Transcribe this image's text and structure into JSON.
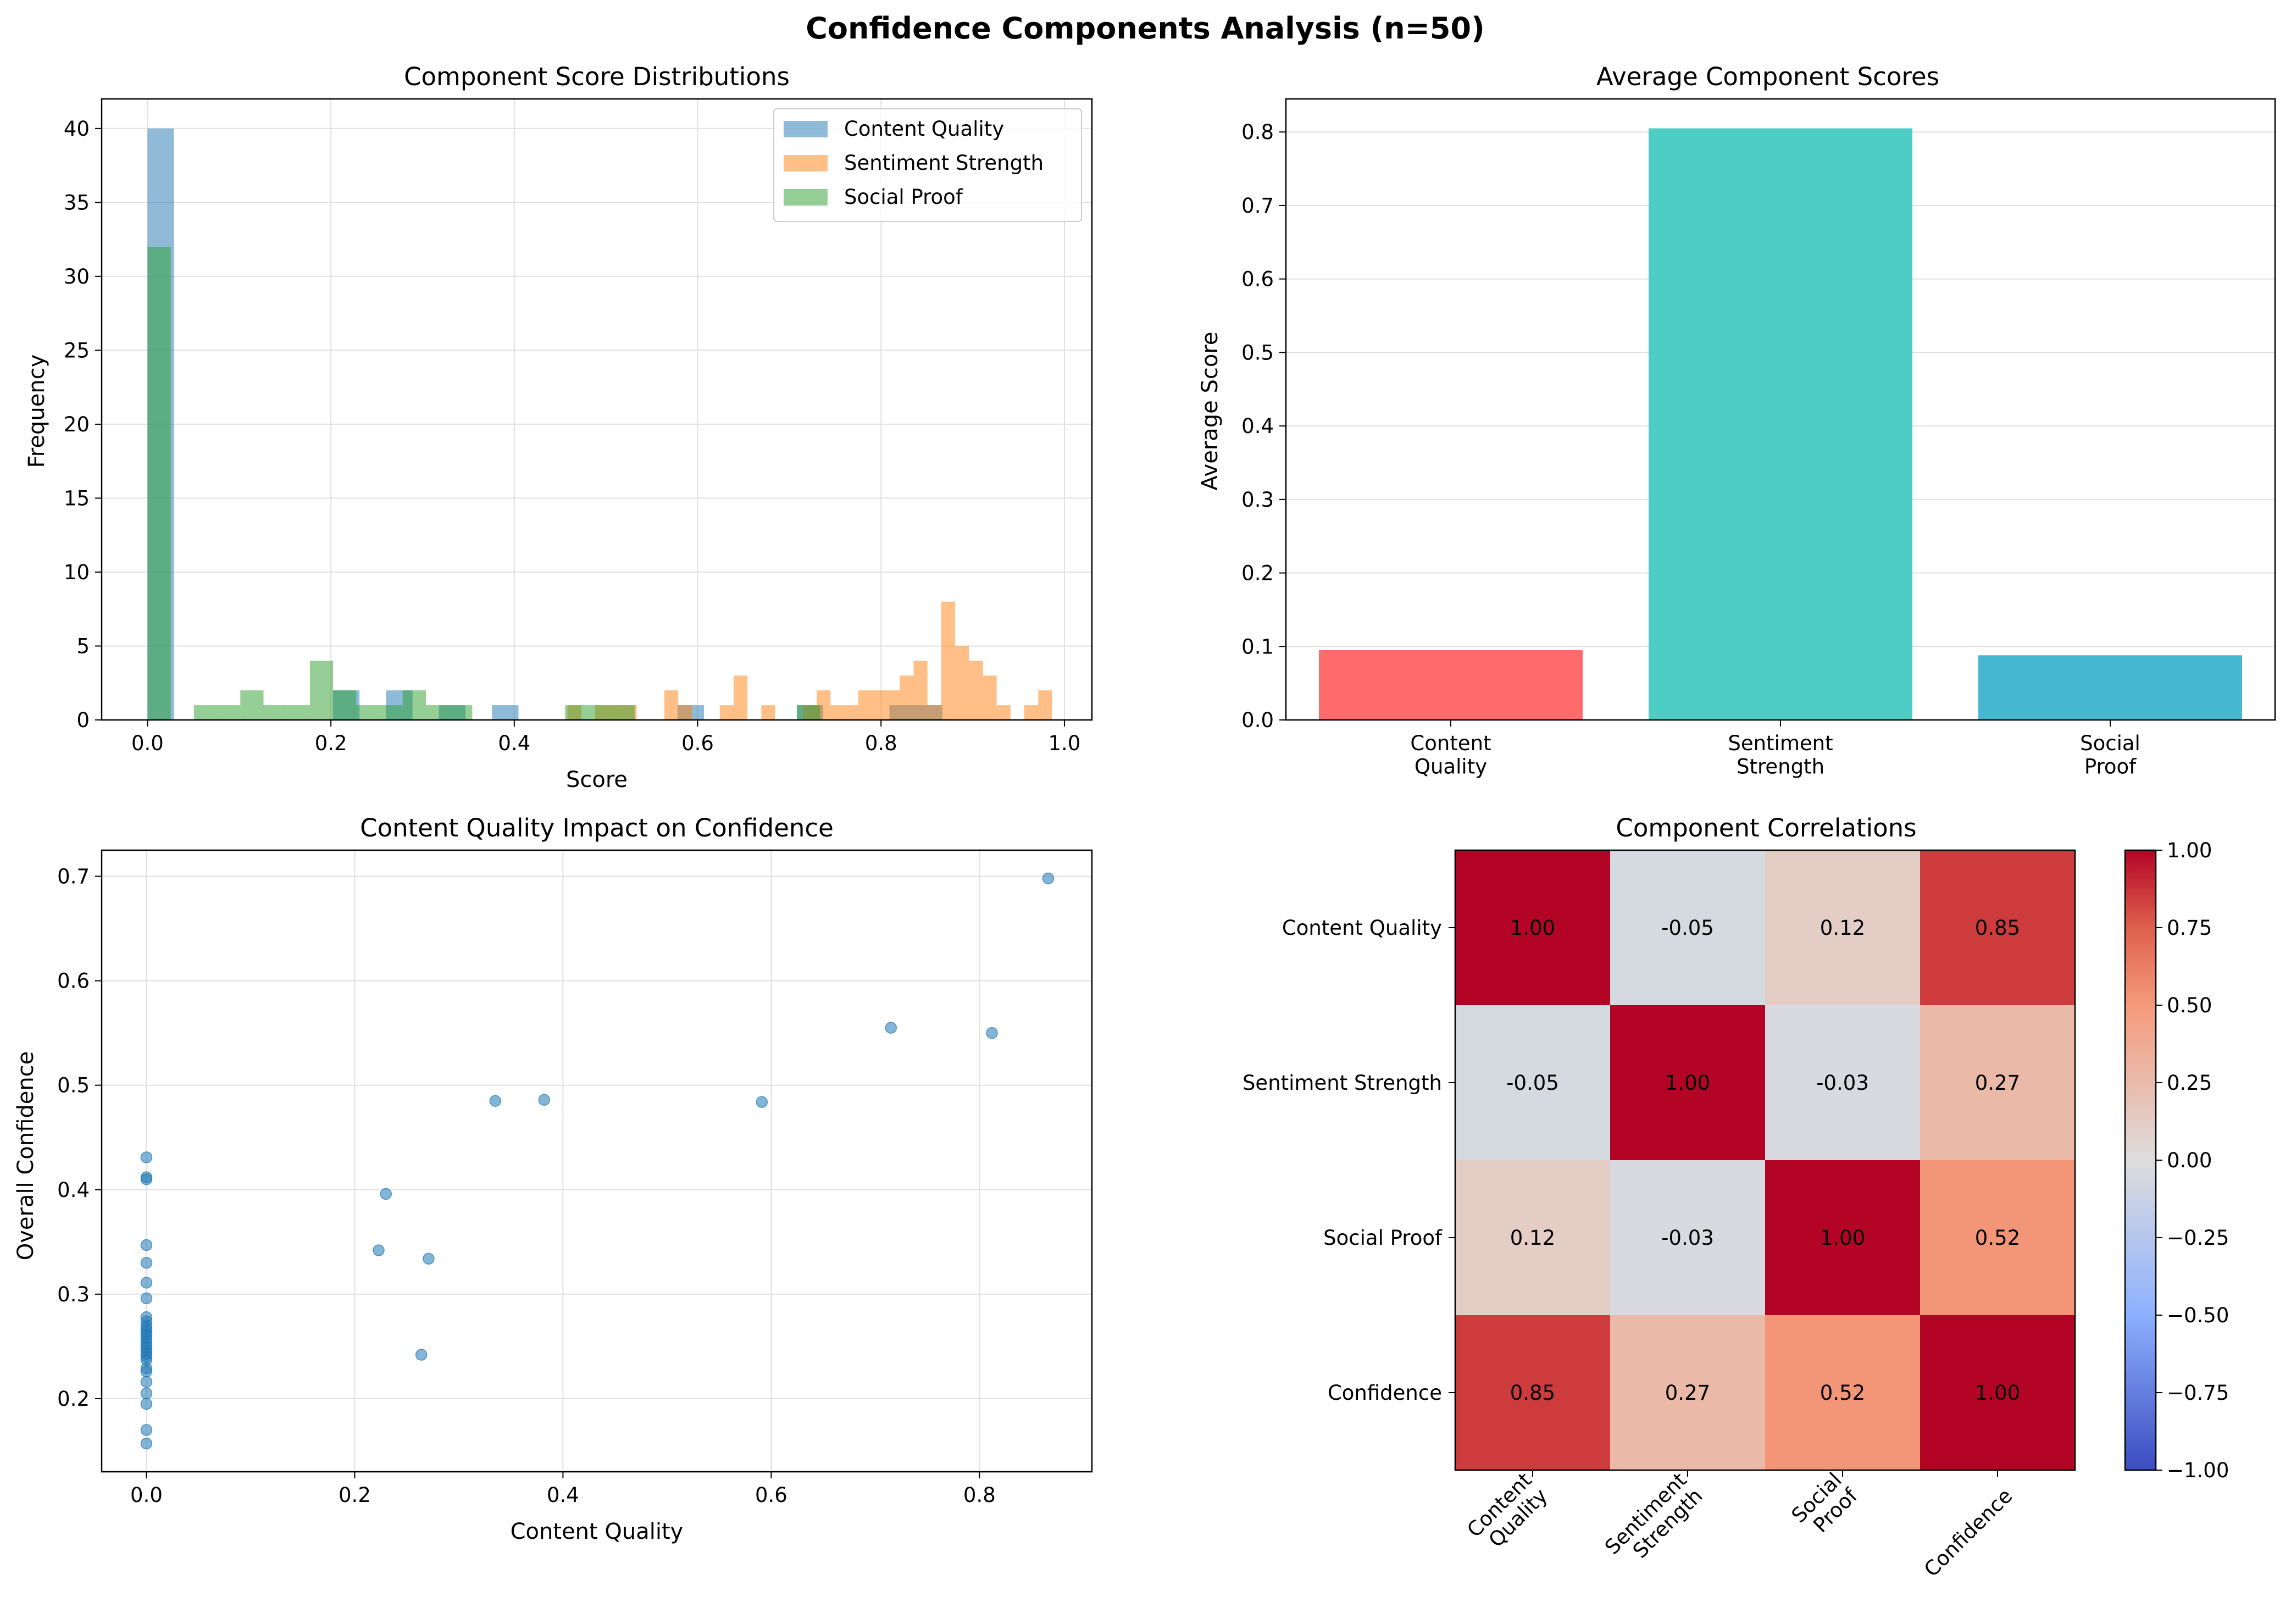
{
  "figure": {
    "title": "Confidence Components Analysis (n=50)"
  },
  "chart_data": [
    {
      "type": "bar",
      "subtype": "histogram",
      "title": "Component Score Distributions",
      "xlabel": "Score",
      "ylabel": "Frequency",
      "xlim": [
        -0.05,
        1.03
      ],
      "ylim": [
        0,
        42
      ],
      "xticks": [
        "0.0",
        "0.2",
        "0.4",
        "0.6",
        "0.8",
        "1.0"
      ],
      "yticks": [
        "0",
        "5",
        "10",
        "15",
        "20",
        "25",
        "30",
        "35",
        "40"
      ],
      "grid": true,
      "legend": "top-right",
      "series": [
        {
          "name": "Content Quality",
          "color": "#1f77b4",
          "bins": [
            {
              "x0": 0.0,
              "x1": 0.0289,
              "count": 40
            },
            {
              "x0": 0.2023,
              "x1": 0.2312,
              "count": 2
            },
            {
              "x0": 0.2601,
              "x1": 0.289,
              "count": 2
            },
            {
              "x0": 0.3179,
              "x1": 0.3468,
              "count": 1
            },
            {
              "x0": 0.3757,
              "x1": 0.4046,
              "count": 1
            },
            {
              "x0": 0.578,
              "x1": 0.6069,
              "count": 1
            },
            {
              "x0": 0.7081,
              "x1": 0.737,
              "count": 1
            },
            {
              "x0": 0.8092,
              "x1": 0.8381,
              "count": 1
            },
            {
              "x0": 0.8381,
              "x1": 0.867,
              "count": 1
            }
          ]
        },
        {
          "name": "Sentiment Strength",
          "color": "#ff7f0e",
          "bins": [
            {
              "x0": 0.458,
              "x1": 0.4731,
              "count": 1
            },
            {
              "x0": 0.4882,
              "x1": 0.5184,
              "count": 1
            },
            {
              "x0": 0.5184,
              "x1": 0.5335,
              "count": 1
            },
            {
              "x0": 0.5637,
              "x1": 0.5788,
              "count": 2
            },
            {
              "x0": 0.5788,
              "x1": 0.5939,
              "count": 1
            },
            {
              "x0": 0.6241,
              "x1": 0.6392,
              "count": 1
            },
            {
              "x0": 0.6392,
              "x1": 0.6543,
              "count": 3
            },
            {
              "x0": 0.6694,
              "x1": 0.6845,
              "count": 1
            },
            {
              "x0": 0.7147,
              "x1": 0.7298,
              "count": 1
            },
            {
              "x0": 0.7298,
              "x1": 0.7449,
              "count": 2
            },
            {
              "x0": 0.7449,
              "x1": 0.76,
              "count": 1
            },
            {
              "x0": 0.76,
              "x1": 0.7751,
              "count": 1
            },
            {
              "x0": 0.7751,
              "x1": 0.7902,
              "count": 2
            },
            {
              "x0": 0.7902,
              "x1": 0.8053,
              "count": 2
            },
            {
              "x0": 0.8053,
              "x1": 0.8204,
              "count": 2
            },
            {
              "x0": 0.8204,
              "x1": 0.8355,
              "count": 3
            },
            {
              "x0": 0.8355,
              "x1": 0.8506,
              "count": 4
            },
            {
              "x0": 0.8506,
              "x1": 0.8657,
              "count": 1
            },
            {
              "x0": 0.8657,
              "x1": 0.8808,
              "count": 8
            },
            {
              "x0": 0.8808,
              "x1": 0.8959,
              "count": 5
            },
            {
              "x0": 0.8959,
              "x1": 0.911,
              "count": 4
            },
            {
              "x0": 0.911,
              "x1": 0.9261,
              "count": 3
            },
            {
              "x0": 0.9261,
              "x1": 0.9412,
              "count": 1
            },
            {
              "x0": 0.9563,
              "x1": 0.9714,
              "count": 1
            },
            {
              "x0": 0.9714,
              "x1": 0.9865,
              "count": 2
            }
          ]
        },
        {
          "name": "Social Proof",
          "color": "#2ca02c",
          "bins": [
            {
              "x0": 0.0,
              "x1": 0.0253,
              "count": 32
            },
            {
              "x0": 0.0506,
              "x1": 0.0759,
              "count": 1
            },
            {
              "x0": 0.0759,
              "x1": 0.1012,
              "count": 1
            },
            {
              "x0": 0.1012,
              "x1": 0.1265,
              "count": 2
            },
            {
              "x0": 0.1265,
              "x1": 0.1518,
              "count": 1
            },
            {
              "x0": 0.1518,
              "x1": 0.1771,
              "count": 1
            },
            {
              "x0": 0.1771,
              "x1": 0.2024,
              "count": 4
            },
            {
              "x0": 0.2024,
              "x1": 0.2277,
              "count": 2
            },
            {
              "x0": 0.2277,
              "x1": 0.253,
              "count": 1
            },
            {
              "x0": 0.253,
              "x1": 0.2783,
              "count": 1
            },
            {
              "x0": 0.2783,
              "x1": 0.3036,
              "count": 2
            },
            {
              "x0": 0.3036,
              "x1": 0.3289,
              "count": 1
            },
            {
              "x0": 0.3289,
              "x1": 0.3542,
              "count": 1
            },
            {
              "x0": 0.4554,
              "x1": 0.4807,
              "count": 1
            },
            {
              "x0": 0.4807,
              "x1": 0.506,
              "count": 1
            },
            {
              "x0": 0.506,
              "x1": 0.5313,
              "count": 1
            },
            {
              "x0": 0.7084,
              "x1": 0.7337,
              "count": 1
            }
          ]
        }
      ]
    },
    {
      "type": "bar",
      "title": "Average Component Scores",
      "xlabel": "",
      "ylabel": "Average Score",
      "categories": [
        "Content\nQuality",
        "Sentiment\nStrength",
        "Social\nProof"
      ],
      "values": [
        0.095,
        0.805,
        0.088
      ],
      "colors": [
        "#ff6b6b",
        "#4ecdc4",
        "#45b7d1"
      ],
      "ylim": [
        0,
        0.845
      ],
      "yticks": [
        "0.0",
        "0.1",
        "0.2",
        "0.3",
        "0.4",
        "0.5",
        "0.6",
        "0.7",
        "0.8"
      ],
      "grid": true
    },
    {
      "type": "scatter",
      "title": "Content Quality Impact on Confidence",
      "xlabel": "Content Quality",
      "ylabel": "Overall Confidence",
      "color": "#1f77b4",
      "xlim": [
        -0.043,
        0.908
      ],
      "ylim": [
        0.13,
        0.725
      ],
      "xticks": [
        "0.0",
        "0.2",
        "0.4",
        "0.6",
        "0.8"
      ],
      "yticks": [
        "0.2",
        "0.3",
        "0.4",
        "0.5",
        "0.6",
        "0.7"
      ],
      "grid": true,
      "points": [
        [
          0,
          0.431
        ],
        [
          0,
          0.412
        ],
        [
          0,
          0.41
        ],
        [
          0,
          0.347
        ],
        [
          0,
          0.33
        ],
        [
          0,
          0.311
        ],
        [
          0,
          0.296
        ],
        [
          0,
          0.278
        ],
        [
          0,
          0.274
        ],
        [
          0,
          0.27
        ],
        [
          0,
          0.267
        ],
        [
          0,
          0.264
        ],
        [
          0,
          0.261
        ],
        [
          0,
          0.258
        ],
        [
          0,
          0.255
        ],
        [
          0,
          0.252
        ],
        [
          0,
          0.249
        ],
        [
          0,
          0.246
        ],
        [
          0,
          0.243
        ],
        [
          0,
          0.24
        ],
        [
          0,
          0.237
        ],
        [
          0,
          0.229
        ],
        [
          0,
          0.226
        ],
        [
          0,
          0.216
        ],
        [
          0,
          0.205
        ],
        [
          0,
          0.195
        ],
        [
          0,
          0.17
        ],
        [
          0,
          0.157
        ],
        [
          0.223,
          0.342
        ],
        [
          0.23,
          0.396
        ],
        [
          0.264,
          0.242
        ],
        [
          0.271,
          0.334
        ],
        [
          0.335,
          0.485
        ],
        [
          0.382,
          0.486
        ],
        [
          0.591,
          0.484
        ],
        [
          0.715,
          0.555
        ],
        [
          0.812,
          0.55
        ],
        [
          0.866,
          0.698
        ]
      ]
    },
    {
      "type": "heatmap",
      "title": "Component Correlations",
      "colormap": "coolwarm",
      "vmin": -1.0,
      "vmax": 1.0,
      "row_labels": [
        "Content Quality",
        "Sentiment Strength",
        "Social Proof",
        "Confidence"
      ],
      "col_labels": [
        "Content\nQuality",
        "Sentiment\nStrength",
        "Social\nProof",
        "Confidence"
      ],
      "values": [
        [
          1.0,
          -0.05,
          0.12,
          0.85
        ],
        [
          -0.05,
          1.0,
          -0.03,
          0.27
        ],
        [
          0.12,
          -0.03,
          1.0,
          0.52
        ],
        [
          0.85,
          0.27,
          0.52,
          1.0
        ]
      ],
      "cell_labels": [
        [
          "1.00",
          "-0.05",
          "0.12",
          "0.85"
        ],
        [
          "-0.05",
          "1.00",
          "-0.03",
          "0.27"
        ],
        [
          "0.12",
          "-0.03",
          "1.00",
          "0.52"
        ],
        [
          "0.85",
          "0.27",
          "0.52",
          "1.00"
        ]
      ],
      "colorbar_ticks": [
        "1.00",
        "0.75",
        "0.50",
        "0.25",
        "0.00",
        "−0.25",
        "−0.50",
        "−0.75",
        "−1.00"
      ],
      "colorbar_values": [
        1.0,
        0.75,
        0.5,
        0.25,
        0.0,
        -0.25,
        -0.5,
        -0.75,
        -1.0
      ]
    }
  ]
}
